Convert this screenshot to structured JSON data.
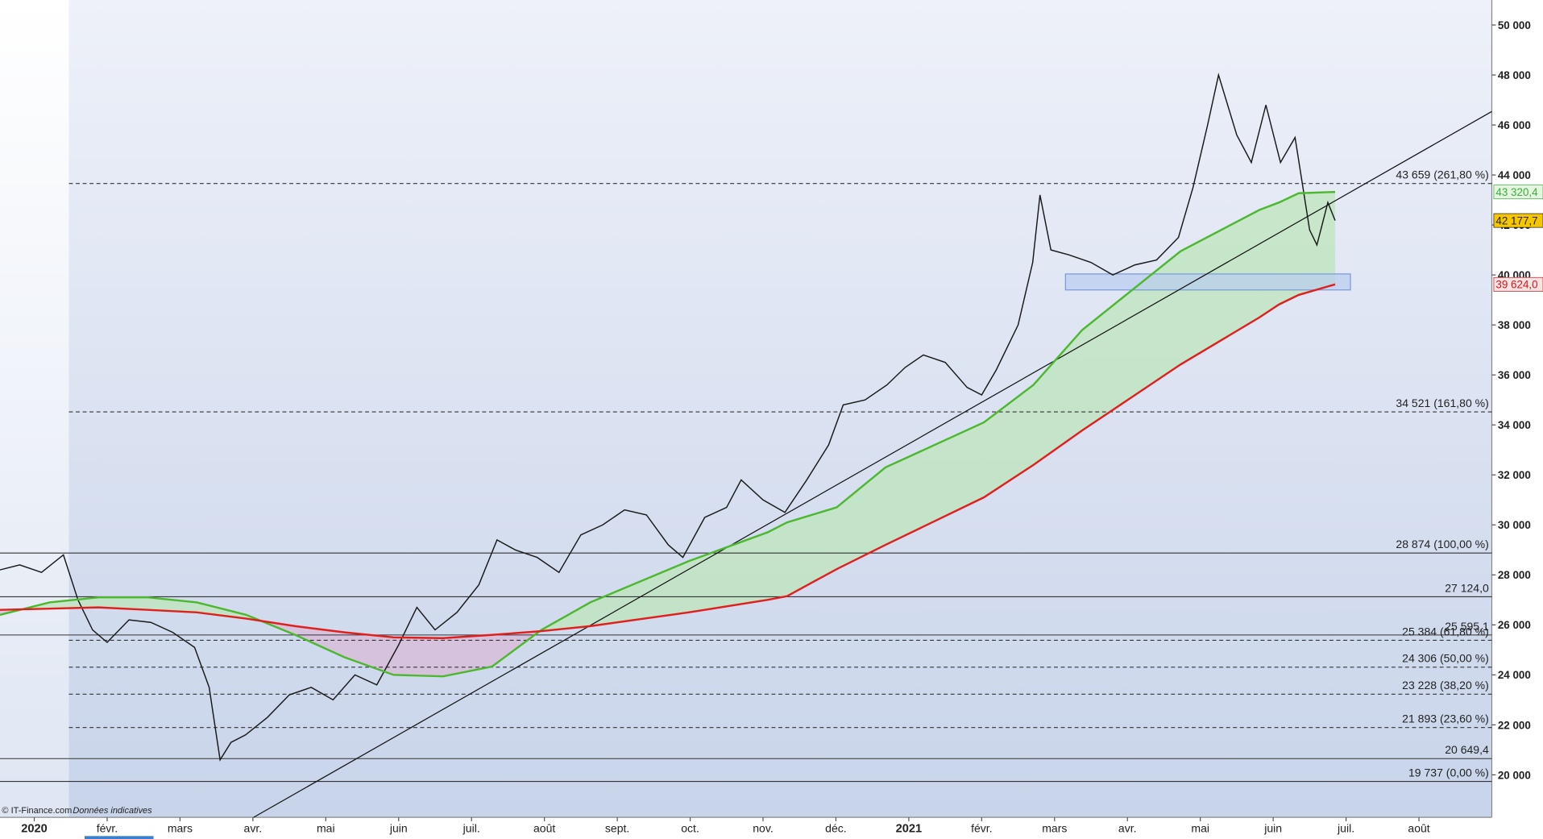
{
  "chart_data": {
    "type": "line",
    "xlim": [
      -0.47,
      20.0
    ],
    "ylim": [
      18300,
      51000
    ],
    "xticks": [
      {
        "value": 0,
        "label": "2020"
      },
      {
        "value": 1,
        "label": "févr."
      },
      {
        "value": 2,
        "label": "mars"
      },
      {
        "value": 3,
        "label": "avr."
      },
      {
        "value": 4,
        "label": "mai"
      },
      {
        "value": 5,
        "label": "juin"
      },
      {
        "value": 6,
        "label": "juil."
      },
      {
        "value": 7,
        "label": "août"
      },
      {
        "value": 8,
        "label": "sept."
      },
      {
        "value": 9,
        "label": "oct."
      },
      {
        "value": 10,
        "label": "nov."
      },
      {
        "value": 11,
        "label": "déc."
      },
      {
        "value": 12,
        "label": "2021"
      },
      {
        "value": 13,
        "label": "févr."
      },
      {
        "value": 14,
        "label": "mars"
      },
      {
        "value": 15,
        "label": "avr."
      },
      {
        "value": 16,
        "label": "mai"
      },
      {
        "value": 17,
        "label": "juin"
      },
      {
        "value": 18,
        "label": "juil."
      },
      {
        "value": 19,
        "label": "août"
      }
    ],
    "yticks": [
      {
        "value": 20000,
        "label": "20 000"
      },
      {
        "value": 22000,
        "label": "22 000"
      },
      {
        "value": 24000,
        "label": "24 000"
      },
      {
        "value": 26000,
        "label": "26 000"
      },
      {
        "value": 28000,
        "label": "28 000"
      },
      {
        "value": 30000,
        "label": "30 000"
      },
      {
        "value": 32000,
        "label": "32 000"
      },
      {
        "value": 34000,
        "label": "34 000"
      },
      {
        "value": 36000,
        "label": "36 000"
      },
      {
        "value": 38000,
        "label": "38 000"
      },
      {
        "value": 40000,
        "label": "40 000"
      },
      {
        "value": 42000,
        "label": "42 000"
      },
      {
        "value": 44000,
        "label": "44 000"
      },
      {
        "value": 46000,
        "label": "46 000"
      },
      {
        "value": 48000,
        "label": "48 000"
      },
      {
        "value": 50000,
        "label": "50 000"
      }
    ],
    "series": [
      {
        "color": "#1a1a1a",
        "x": [
          -0.47,
          -0.2,
          0.1,
          0.4,
          0.6,
          0.8,
          1.0,
          1.3,
          1.6,
          1.9,
          2.2,
          2.4,
          2.55,
          2.7,
          2.9,
          3.2,
          3.5,
          3.8,
          4.1,
          4.4,
          4.7,
          5.0,
          5.25,
          5.5,
          5.8,
          6.1,
          6.35,
          6.6,
          6.9,
          7.2,
          7.5,
          7.8,
          8.1,
          8.4,
          8.7,
          8.9,
          9.2,
          9.5,
          9.7,
          10.0,
          10.3,
          10.6,
          10.9,
          11.1,
          11.4,
          11.7,
          11.95,
          12.2,
          12.5,
          12.8,
          13.0,
          13.2,
          13.5,
          13.7,
          13.8,
          13.95,
          14.2,
          14.5,
          14.8,
          15.1,
          15.4,
          15.7,
          15.9,
          16.1,
          16.25,
          16.5,
          16.7,
          16.9,
          17.1,
          17.3,
          17.5,
          17.6,
          17.75,
          17.85
        ],
        "values": [
          28200,
          28400,
          28100,
          28800,
          27000,
          25800,
          25300,
          26200,
          26100,
          25700,
          25100,
          23500,
          20600,
          21300,
          21600,
          22300,
          23200,
          23500,
          23000,
          24000,
          23600,
          25200,
          26700,
          25800,
          26500,
          27600,
          29400,
          29000,
          28700,
          28100,
          29600,
          30000,
          30600,
          30400,
          29200,
          28700,
          30300,
          30700,
          31800,
          31000,
          30500,
          31800,
          33200,
          34800,
          35000,
          35600,
          36300,
          36800,
          36500,
          35500,
          35200,
          36200,
          38000,
          40500,
          43200,
          41000,
          40800,
          40500,
          40000,
          40400,
          40600,
          41500,
          43500,
          46000,
          48000,
          45600,
          44500,
          46800,
          44500,
          45500,
          41800,
          41200,
          42900,
          42177.7
        ]
      },
      {
        "color": "#4cb82e",
        "x": [
          -0.47,
          0.21,
          0.88,
          1.56,
          2.23,
          2.91,
          3.58,
          4.26,
          4.93,
          5.61,
          6.28,
          6.96,
          7.63,
          8.98,
          10.06,
          10.33,
          11.01,
          11.68,
          13.03,
          13.71,
          14.38,
          15.73,
          16.81,
          17.08,
          17.35,
          17.85
        ],
        "values": [
          26400,
          26900,
          27100,
          27100,
          26900,
          26400,
          25600,
          24700,
          24000,
          23940,
          24330,
          25800,
          26900,
          28550,
          29700,
          30100,
          30700,
          32300,
          34100,
          35600,
          37800,
          40950,
          42600,
          42900,
          43270,
          43320.4
        ]
      },
      {
        "color": "#e0201c",
        "x": [
          -0.47,
          0.21,
          0.88,
          1.56,
          2.23,
          2.91,
          3.58,
          4.26,
          4.93,
          5.61,
          6.28,
          6.96,
          7.63,
          8.98,
          10.06,
          10.33,
          11.01,
          11.68,
          13.03,
          13.71,
          14.38,
          15.73,
          16.81,
          17.08,
          17.35,
          17.85
        ],
        "values": [
          26600,
          26650,
          26700,
          26600,
          26500,
          26250,
          25950,
          25700,
          25500,
          25470,
          25600,
          25750,
          25950,
          26500,
          27000,
          27150,
          28230,
          29200,
          31100,
          32400,
          33780,
          36420,
          38300,
          38820,
          39200,
          39624
        ]
      }
    ],
    "trendline": {
      "color": "#111111",
      "x": [
        3.01,
        20.0
      ],
      "values": [
        18300,
        46540
      ]
    },
    "zone": {
      "color": "#b9cdf0",
      "x": [
        14.15,
        18.06
      ],
      "values": [
        39400,
        40040
      ]
    },
    "levels": [
      {
        "value": 43659,
        "label": "43 659 (261,80 %)",
        "dashed": true
      },
      {
        "value": 34521,
        "label": "34 521 (161,80 %)",
        "dashed": true
      },
      {
        "value": 28874,
        "label": "28 874 (100,00 %)",
        "dashed": false
      },
      {
        "value": 27124,
        "label": "27 124,0",
        "dashed": false
      },
      {
        "value": 25595.1,
        "label": "25 595,1",
        "dashed": false
      },
      {
        "value": 25384,
        "label": "25 384 (61,80 %)",
        "dashed": true
      },
      {
        "value": 24306,
        "label": "24 306 (50,00 %)",
        "dashed": true
      },
      {
        "value": 23228,
        "label": "23 228 (38,20 %)",
        "dashed": true
      },
      {
        "value": 21893,
        "label": "21 893 (23,60 %)",
        "dashed": true
      },
      {
        "value": 20649.4,
        "label": "20 649,4",
        "dashed": false
      },
      {
        "value": 19737,
        "label": "19 737 (0,00 %)",
        "dashed": false
      }
    ],
    "price_tags": [
      {
        "value": 43320.4,
        "label": "43 320,4",
        "color": "#3cae3c",
        "background": "#e4f5e0"
      },
      {
        "value": 42177.7,
        "label": "42 177,7",
        "color": "#222222",
        "background": "#f6c700"
      },
      {
        "value": 39624.0,
        "label": "39 624,0",
        "color": "#d01818",
        "background": "#fbe3e3"
      }
    ],
    "credit": "© IT-Finance.com",
    "note": "Données indicatives"
  }
}
